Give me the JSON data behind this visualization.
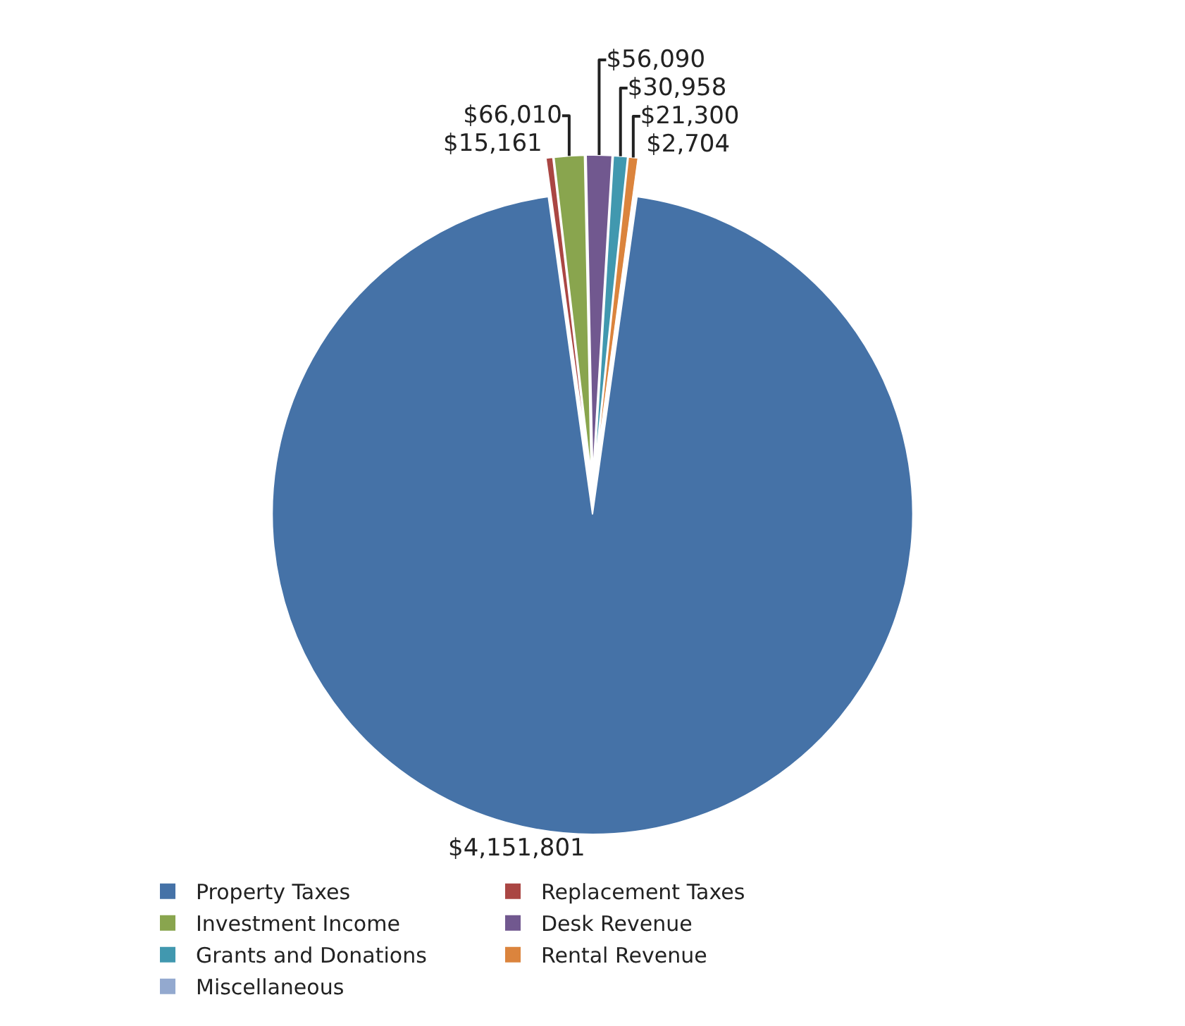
{
  "chart_data": {
    "type": "pie",
    "categories": [
      "Property Taxes",
      "Replacement Taxes",
      "Investment Income",
      "Desk Revenue",
      "Grants and Donations",
      "Rental Revenue",
      "Miscellaneous"
    ],
    "values": [
      4151801,
      15161,
      66010,
      56090,
      30958,
      21300,
      2704
    ],
    "colors": [
      "#4572a7",
      "#aa4643",
      "#89a54e",
      "#71588f",
      "#4198af",
      "#db843d",
      "#93a9cf"
    ],
    "value_labels": [
      "$4,151,801",
      "$15,161",
      "$66,010",
      "$56,090",
      "$30,958",
      "$21,300",
      "$2,704"
    ],
    "legend": "bottom"
  }
}
